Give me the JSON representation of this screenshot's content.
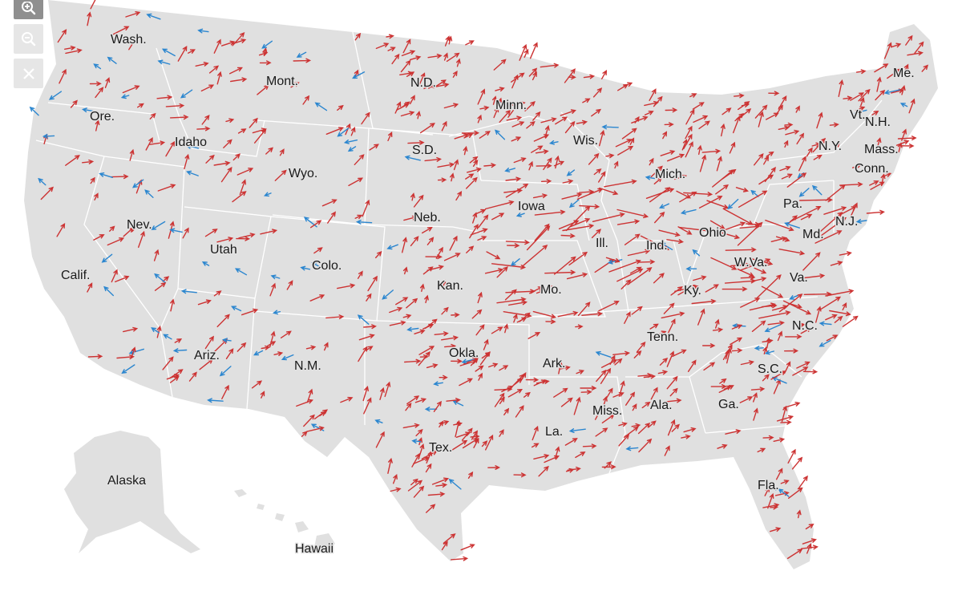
{
  "map": {
    "land_color": "#e0e0e0",
    "border_color": "#ffffff",
    "red_arrow_color": "#cc3333",
    "blue_arrow_color": "#2b86cf",
    "labels": [
      {
        "id": "wash",
        "text": "Wash."
      },
      {
        "id": "ore",
        "text": "Ore."
      },
      {
        "id": "calif",
        "text": "Calif."
      },
      {
        "id": "idaho",
        "text": "Idaho"
      },
      {
        "id": "nev",
        "text": "Nev."
      },
      {
        "id": "mont",
        "text": "Mont."
      },
      {
        "id": "wyo",
        "text": "Wyo."
      },
      {
        "id": "utah",
        "text": "Utah"
      },
      {
        "id": "colo",
        "text": "Colo."
      },
      {
        "id": "ariz",
        "text": "Ariz."
      },
      {
        "id": "nm",
        "text": "N.M."
      },
      {
        "id": "nd",
        "text": "N.D."
      },
      {
        "id": "sd",
        "text": "S.D."
      },
      {
        "id": "neb",
        "text": "Neb."
      },
      {
        "id": "kan",
        "text": "Kan."
      },
      {
        "id": "okla",
        "text": "Okla."
      },
      {
        "id": "tex",
        "text": "Tex."
      },
      {
        "id": "minn",
        "text": "Minn."
      },
      {
        "id": "iowa",
        "text": "Iowa"
      },
      {
        "id": "mo",
        "text": "Mo."
      },
      {
        "id": "ark",
        "text": "Ark."
      },
      {
        "id": "la",
        "text": "La."
      },
      {
        "id": "wis",
        "text": "Wis."
      },
      {
        "id": "ill",
        "text": "Ill."
      },
      {
        "id": "mich",
        "text": "Mich."
      },
      {
        "id": "ind",
        "text": "Ind."
      },
      {
        "id": "ohio",
        "text": "Ohio"
      },
      {
        "id": "ky",
        "text": "Ky."
      },
      {
        "id": "tenn",
        "text": "Tenn."
      },
      {
        "id": "miss",
        "text": "Miss."
      },
      {
        "id": "ala",
        "text": "Ala."
      },
      {
        "id": "ga",
        "text": "Ga."
      },
      {
        "id": "fla",
        "text": "Fla."
      },
      {
        "id": "sc",
        "text": "S.C."
      },
      {
        "id": "nc",
        "text": "N.C."
      },
      {
        "id": "va",
        "text": "Va."
      },
      {
        "id": "wva",
        "text": "W.Va."
      },
      {
        "id": "pa",
        "text": "Pa."
      },
      {
        "id": "md",
        "text": "Md."
      },
      {
        "id": "nj",
        "text": "N.J."
      },
      {
        "id": "ny",
        "text": "N.Y."
      },
      {
        "id": "conn",
        "text": "Conn."
      },
      {
        "id": "mass",
        "text": "Mass."
      },
      {
        "id": "vt",
        "text": "Vt."
      },
      {
        "id": "nh",
        "text": "N.H."
      },
      {
        "id": "me",
        "text": "Me."
      },
      {
        "id": "alaska",
        "text": "Alaska"
      },
      {
        "id": "hawaii",
        "text": "Hawaii"
      }
    ]
  },
  "controls": {
    "zoom_in": "zoom-in-icon",
    "zoom_out": "zoom-out-icon",
    "close": "close-icon"
  }
}
